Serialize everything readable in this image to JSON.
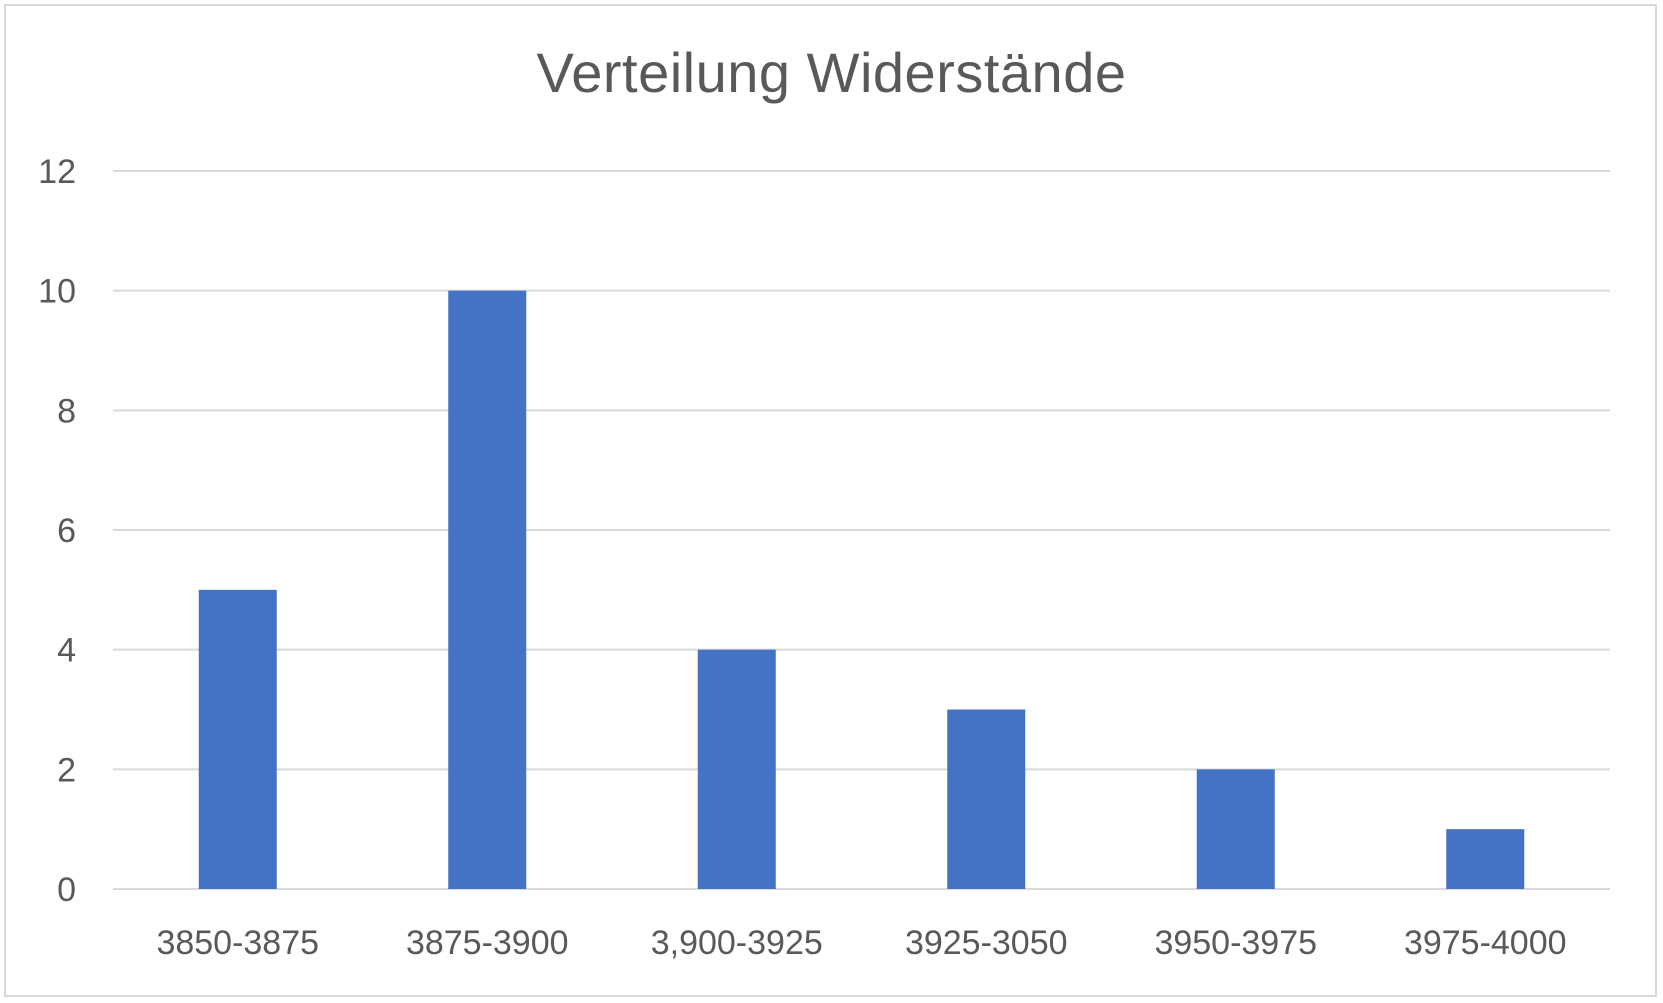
{
  "chart_data": {
    "type": "bar",
    "title": "Verteilung Widerstände",
    "categories": [
      "3850-3875",
      "3875-3900",
      "3,900-3925",
      "3925-3050",
      "3950-3975",
      "3975-4000"
    ],
    "values": [
      5,
      10,
      4,
      3,
      2,
      1
    ],
    "ylim": [
      0,
      12
    ],
    "yticks": [
      "0",
      "2",
      "4",
      "6",
      "8",
      "10",
      "12"
    ],
    "xlabel": "",
    "ylabel": "",
    "grid": true,
    "legend": "none",
    "bar_color": "#4472c4",
    "grid_color": "#d9d9d9",
    "text_color": "#595959"
  }
}
